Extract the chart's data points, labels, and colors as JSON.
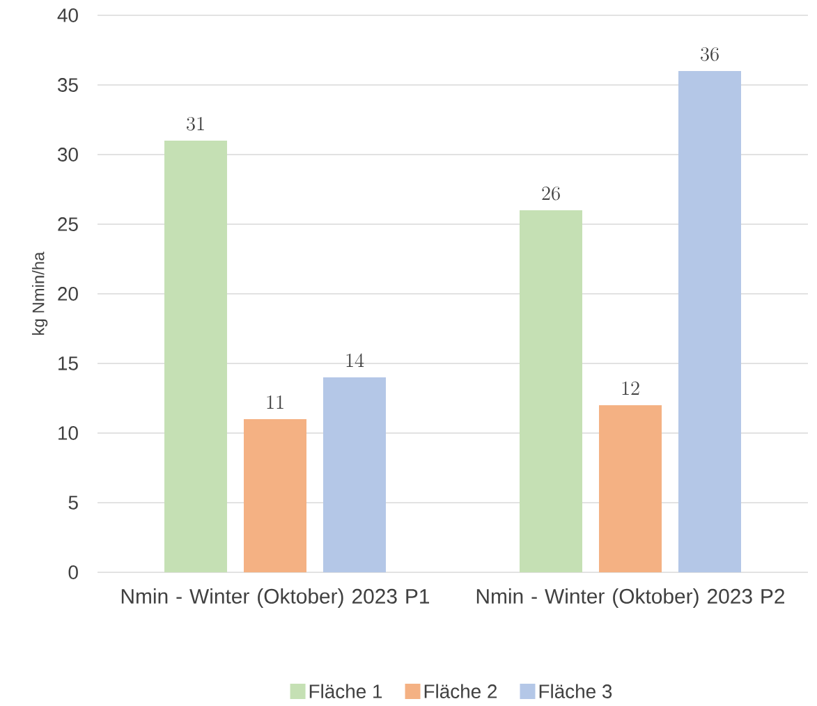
{
  "chart_data": {
    "type": "bar",
    "ylabel": "kg Nmin/ha",
    "categories": [
      "Nmin - Winter (Oktober) 2023 P1",
      "Nmin - Winter (Oktober) 2023 P2"
    ],
    "series": [
      {
        "name": "Fläche 1",
        "color": "#c5e0b4",
        "values": [
          31,
          26
        ]
      },
      {
        "name": "Fläche 2",
        "color": "#f4b183",
        "values": [
          11,
          12
        ]
      },
      {
        "name": "Fläche 3",
        "color": "#b4c7e7",
        "values": [
          14,
          36
        ]
      }
    ],
    "ylim": [
      0,
      40
    ],
    "yticks": [
      0,
      5,
      10,
      15,
      20,
      25,
      30,
      35,
      40
    ],
    "grid": "y",
    "legend": "bottom",
    "data_labels": true
  }
}
